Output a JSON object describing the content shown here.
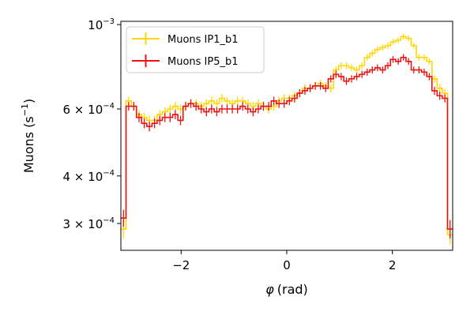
{
  "chart_data": {
    "type": "line",
    "xlabel_symbol": "φ",
    "xlabel_unit": "(rad)",
    "ylabel_main": "Muons (s",
    "ylabel_sup": "−1",
    "ylabel_end": ")",
    "xlim": [
      -3.1416,
      3.1416
    ],
    "ylim": [
      0.000255,
      0.00102
    ],
    "yscale": "log",
    "x_ticks": [
      {
        "value": -2,
        "label": "−2"
      },
      {
        "value": 0,
        "label": "0"
      },
      {
        "value": 2,
        "label": "2"
      }
    ],
    "y_ticks": [
      {
        "value": 0.001,
        "base": "10",
        "exp": "−3"
      },
      {
        "value": 0.0006,
        "base": "6 × 10",
        "exp": "−4"
      },
      {
        "value": 0.0004,
        "base": "4 × 10",
        "exp": "−4"
      },
      {
        "value": 0.0003,
        "base": "3 × 10",
        "exp": "−4"
      }
    ],
    "legend_position": "top-left",
    "bins": 64,
    "series": [
      {
        "name": "Muons IP1_b1",
        "color": "#FFD700",
        "values": [
          0.00029,
          0.00063,
          0.00061,
          0.00058,
          0.00057,
          0.00056,
          0.00056,
          0.00058,
          0.00059,
          0.0006,
          0.00061,
          0.0006,
          0.00061,
          0.00062,
          0.00062,
          0.00061,
          0.00062,
          0.00063,
          0.00062,
          0.00064,
          0.00063,
          0.00062,
          0.00063,
          0.00063,
          0.00062,
          0.00061,
          0.00062,
          0.00061,
          0.0006,
          0.00061,
          0.00063,
          0.00064,
          0.00064,
          0.00065,
          0.00066,
          0.00068,
          0.00068,
          0.00069,
          0.0007,
          0.00069,
          0.00068,
          0.00076,
          0.00078,
          0.00078,
          0.00077,
          0.00076,
          0.00078,
          0.00082,
          0.00084,
          0.00086,
          0.00087,
          0.00088,
          0.0009,
          0.00091,
          0.00093,
          0.00092,
          0.00088,
          0.00082,
          0.00082,
          0.0008,
          0.00072,
          0.00068,
          0.00066,
          0.00028
        ],
        "error": 1.6e-05
      },
      {
        "name": "Muons IP5_b1",
        "color": "#EE1111",
        "values": [
          0.00031,
          0.00061,
          0.00061,
          0.00057,
          0.00055,
          0.00054,
          0.00055,
          0.00056,
          0.00057,
          0.00057,
          0.00058,
          0.00056,
          0.00061,
          0.00062,
          0.00061,
          0.0006,
          0.00059,
          0.0006,
          0.00059,
          0.0006,
          0.0006,
          0.0006,
          0.0006,
          0.00061,
          0.0006,
          0.00059,
          0.0006,
          0.00061,
          0.00061,
          0.00063,
          0.00062,
          0.00062,
          0.00063,
          0.00064,
          0.00066,
          0.00067,
          0.00068,
          0.00069,
          0.00069,
          0.00068,
          0.00072,
          0.00074,
          0.00073,
          0.00071,
          0.00072,
          0.00073,
          0.00074,
          0.00075,
          0.00076,
          0.00077,
          0.00076,
          0.00078,
          0.00081,
          0.0008,
          0.00082,
          0.0008,
          0.00076,
          0.00076,
          0.00075,
          0.00073,
          0.00067,
          0.00065,
          0.00064,
          0.00029
        ],
        "error": 1.6e-05
      }
    ]
  }
}
